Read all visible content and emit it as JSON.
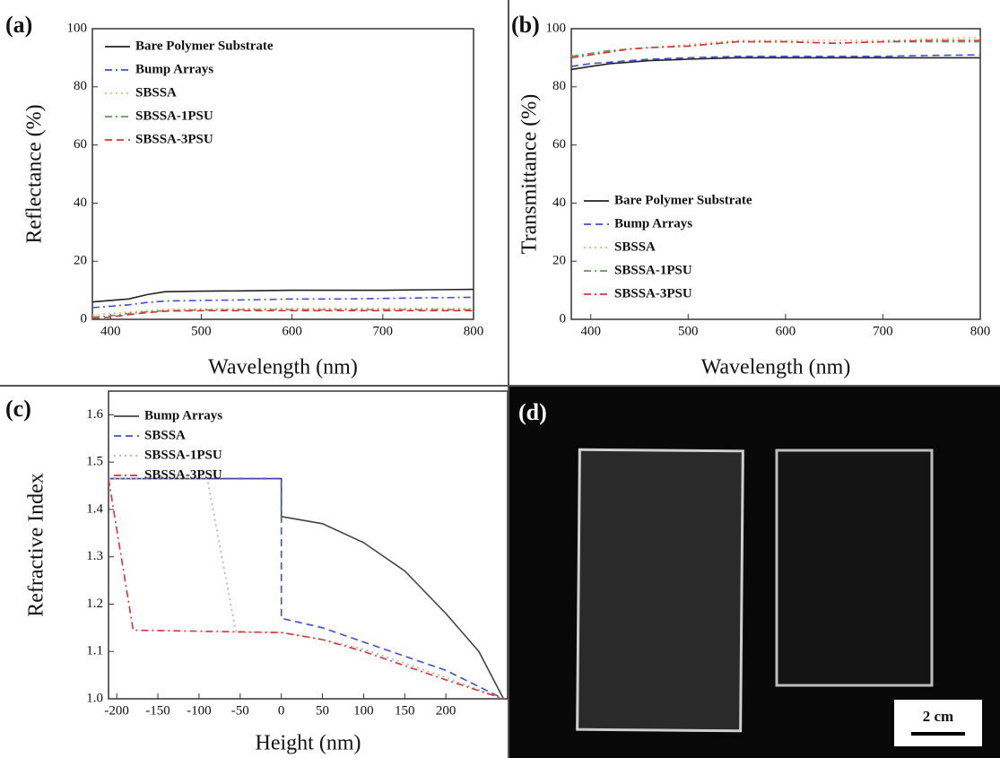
{
  "chart_data": [
    {
      "type": "line",
      "panel": "(a)",
      "xlabel": "Wavelength (nm)",
      "ylabel": "Reflectance (%)",
      "x": [
        380,
        400,
        420,
        440,
        460,
        500,
        550,
        600,
        650,
        700,
        750,
        800
      ],
      "xlim": [
        380,
        800
      ],
      "xticks": [
        400,
        500,
        600,
        700,
        800
      ],
      "ylim": [
        0,
        100
      ],
      "yticks": [
        0,
        20,
        40,
        60,
        80,
        100
      ],
      "legend": "upper left",
      "series": [
        {
          "name": "Bare Polymer Substrate",
          "color": "#222222",
          "dash": "solid",
          "values": [
            6,
            6.5,
            7,
            8.5,
            9.5,
            9.7,
            9.8,
            10,
            10,
            10,
            10.2,
            10.3
          ]
        },
        {
          "name": "Bump Arrays",
          "color": "#3b4fd8",
          "dash": "dashdot",
          "values": [
            4,
            4.5,
            5,
            5.8,
            6.3,
            6.5,
            6.7,
            7,
            7,
            7.2,
            7.4,
            7.6
          ]
        },
        {
          "name": "SBSSA",
          "color": "#f0b070",
          "dash": "dot",
          "values": [
            1.5,
            2,
            2.5,
            3,
            3.5,
            3.6,
            3.7,
            3.8,
            3.8,
            3.8,
            3.8,
            3.8
          ]
        },
        {
          "name": "SBSSA-1PSU",
          "color": "#5a9a5a",
          "dash": "dashdot",
          "values": [
            0.8,
            1.2,
            2,
            2.6,
            3,
            3.2,
            3.3,
            3.3,
            3.3,
            3.3,
            3.3,
            3.3
          ]
        },
        {
          "name": "SBSSA-3PSU",
          "color": "#e03030",
          "dash": "dash",
          "values": [
            0.3,
            0.8,
            1.6,
            2.3,
            2.8,
            3,
            3,
            3,
            3,
            3,
            3,
            3
          ]
        }
      ]
    },
    {
      "type": "line",
      "panel": "(b)",
      "xlabel": "Wavelength (nm)",
      "ylabel": "Transmittance (%)",
      "x": [
        380,
        400,
        420,
        440,
        460,
        500,
        550,
        600,
        650,
        700,
        750,
        800
      ],
      "xlim": [
        380,
        800
      ],
      "xticks": [
        400,
        500,
        600,
        700,
        800
      ],
      "ylim": [
        0,
        100
      ],
      "yticks": [
        0,
        20,
        40,
        60,
        80,
        100
      ],
      "legend": "lower left",
      "series": [
        {
          "name": "Bare Polymer Substrate",
          "color": "#222222",
          "dash": "solid",
          "values": [
            86,
            87,
            88,
            88.5,
            89,
            89.5,
            90,
            90,
            90,
            90,
            90,
            90
          ]
        },
        {
          "name": "Bump Arrays",
          "color": "#3b4fd8",
          "dash": "dash",
          "values": [
            87,
            88,
            88.5,
            89,
            89.5,
            90,
            90.5,
            90.5,
            90.5,
            90.5,
            90.8,
            91
          ]
        },
        {
          "name": "SBSSA",
          "color": "#f0b070",
          "dash": "dot",
          "values": [
            90,
            91,
            92,
            93,
            93.5,
            94.5,
            96,
            96,
            96,
            96,
            96.5,
            97
          ]
        },
        {
          "name": "SBSSA-1PSU",
          "color": "#5a9a5a",
          "dash": "dashdot",
          "values": [
            90.5,
            91.5,
            92.5,
            93,
            93.5,
            94,
            95.5,
            95.5,
            95,
            95.5,
            95.5,
            95.5
          ]
        },
        {
          "name": "SBSSA-3PSU",
          "color": "#e03030",
          "dash": "dashdot",
          "values": [
            90,
            91,
            92,
            93,
            93.5,
            94,
            95.5,
            95.5,
            95,
            95.5,
            96,
            96
          ]
        }
      ]
    },
    {
      "type": "line",
      "panel": "(c)",
      "xlabel": "Height (nm)",
      "ylabel": "Refractive Index",
      "xlim": [
        -210,
        275
      ],
      "xticks": [
        -200,
        -150,
        -100,
        -50,
        0,
        50,
        100,
        150,
        200
      ],
      "ylim": [
        1.0,
        1.65
      ],
      "yticks": [
        {
          "value": 1.0,
          "label": "1.0"
        },
        1.1,
        1.2,
        1.3,
        1.4,
        1.5,
        1.6
      ],
      "legend": "upper left",
      "series": [
        {
          "name": "Bump Arrays",
          "color": "#444444",
          "dash": "solid",
          "x": [
            -210,
            0,
            0,
            50,
            100,
            150,
            200,
            240,
            270
          ],
          "values": [
            1.465,
            1.465,
            1.385,
            1.37,
            1.33,
            1.27,
            1.18,
            1.1,
            1.0
          ]
        },
        {
          "name": "SBSSA",
          "color": "#3b4fd8",
          "dash": "dash",
          "x": [
            -210,
            0,
            0,
            50,
            100,
            150,
            200,
            270
          ],
          "values": [
            1.465,
            1.465,
            1.17,
            1.15,
            1.12,
            1.09,
            1.06,
            1.0
          ]
        },
        {
          "name": "SBSSA-1PSU",
          "color": "#b0b0a0",
          "dash": "dot",
          "x": [
            -210,
            -90,
            -55,
            0,
            50,
            100,
            150,
            200,
            270
          ],
          "values": [
            1.465,
            1.465,
            1.14,
            1.14,
            1.125,
            1.105,
            1.075,
            1.045,
            1.0
          ]
        },
        {
          "name": "SBSSA-3PSU",
          "color": "#e03030",
          "dash": "dashdot",
          "x": [
            -210,
            -180,
            0,
            50,
            100,
            150,
            200,
            270
          ],
          "values": [
            1.465,
            1.145,
            1.14,
            1.125,
            1.1,
            1.07,
            1.04,
            1.0
          ]
        }
      ]
    }
  ],
  "photo": {
    "panel": "(d)",
    "scale_bar": "2 cm"
  }
}
